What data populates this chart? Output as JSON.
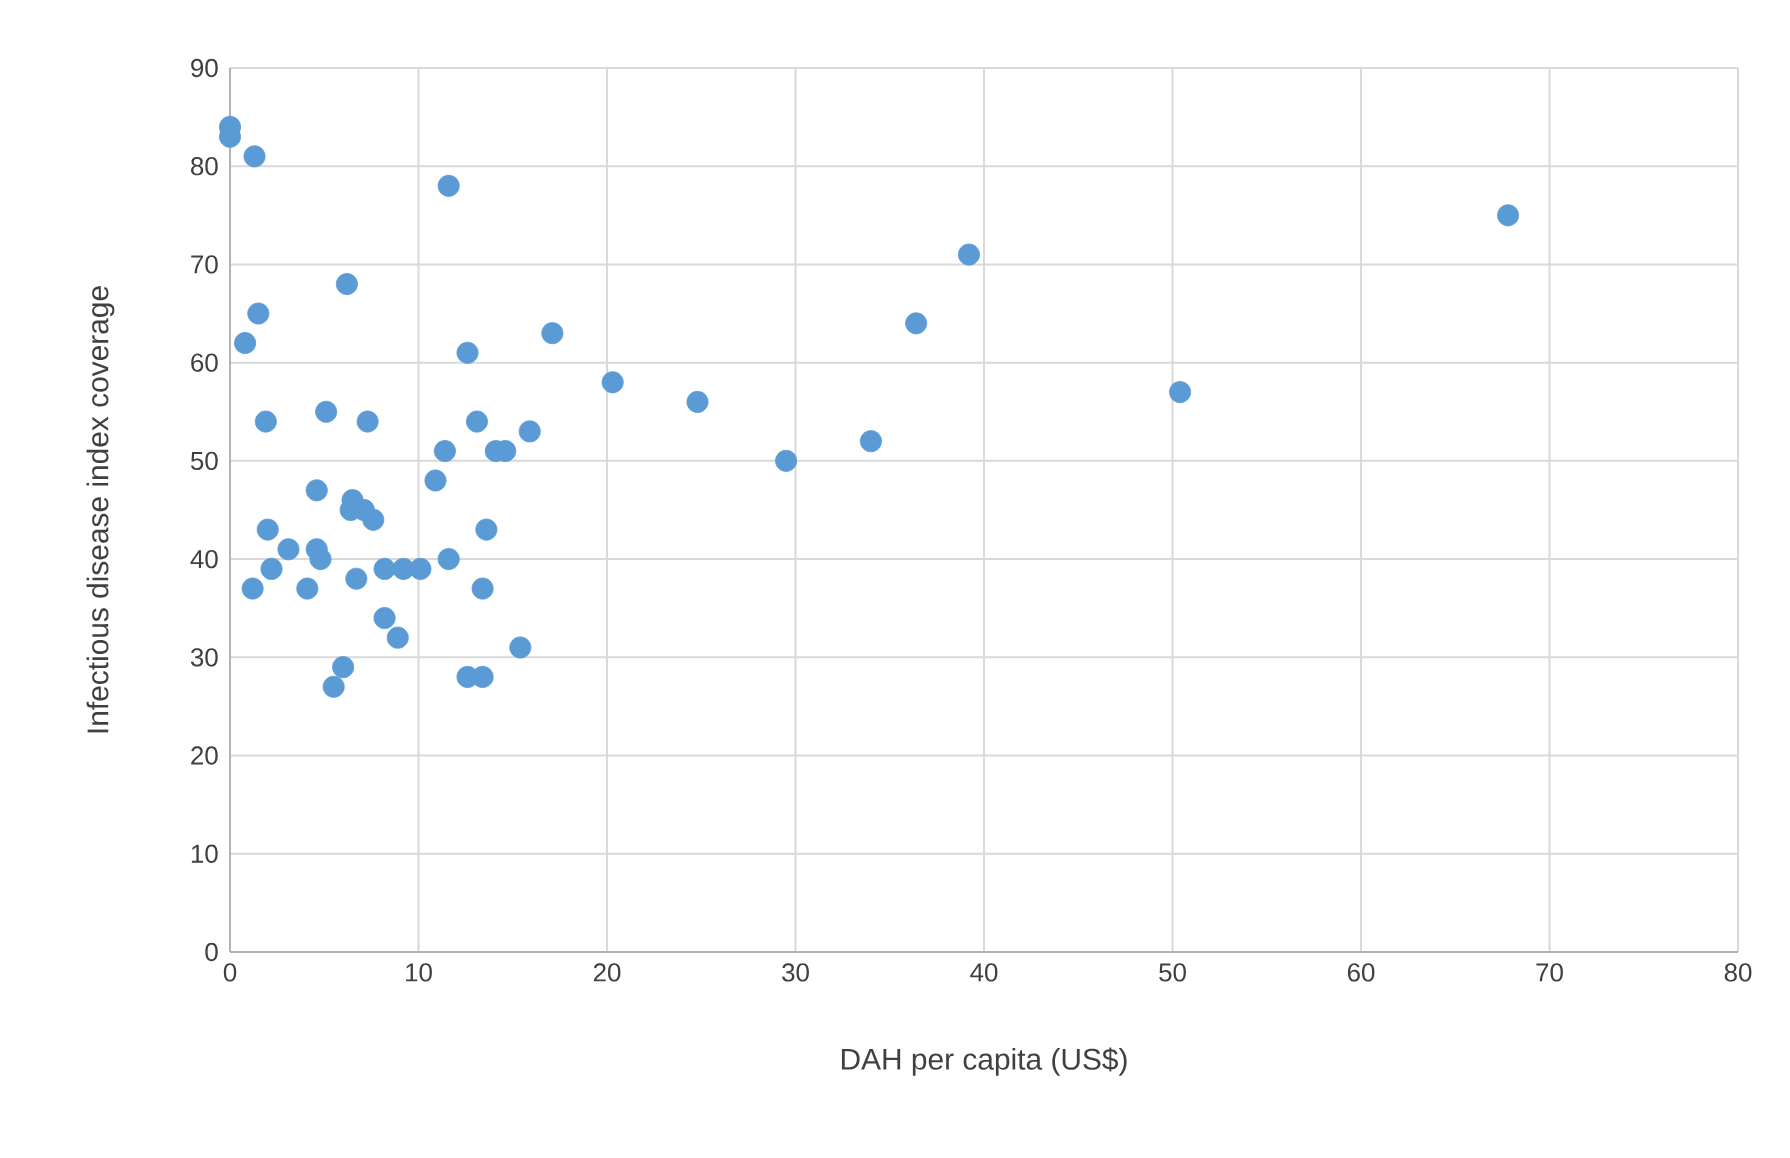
{
  "chart_data": {
    "type": "scatter",
    "xlabel": "DAH per capita (US$)",
    "ylabel": "Infectious disease index coverage",
    "xlim": [
      0,
      80
    ],
    "ylim": [
      0,
      90
    ],
    "xticks": [
      0,
      10,
      20,
      30,
      40,
      50,
      60,
      70,
      80
    ],
    "yticks": [
      0,
      10,
      20,
      30,
      40,
      50,
      60,
      70,
      80,
      90
    ],
    "grid": true,
    "marker": "circle",
    "series": [
      {
        "color": "#5b9bd5",
        "x": [
          0,
          0,
          1.3,
          11.6,
          67.8,
          39.2,
          6.2,
          1.5,
          36.4,
          17.1,
          0.8,
          12.6,
          20.3,
          50.4,
          24.8,
          5.1,
          1.9,
          7.3,
          13.1,
          15.9,
          34,
          11.4,
          14.1,
          14.6,
          29.5,
          10.9,
          4.6,
          6.5,
          6.4,
          7.1,
          7.6,
          2.0,
          13.6,
          3.1,
          4.6,
          4.8,
          11.6,
          2.2,
          8.2,
          9.2,
          10.1,
          6.7,
          1.2,
          4.1,
          13.4,
          8.2,
          8.9,
          15.4,
          6.0,
          12.6,
          13.4,
          5.5
        ],
        "values": [
          84,
          83,
          81,
          78,
          75,
          71,
          68,
          65,
          64,
          63,
          62,
          61,
          58,
          57,
          56,
          55,
          54,
          54,
          54,
          53,
          52,
          51,
          51,
          51,
          50,
          48,
          47,
          46,
          45,
          45,
          44,
          43,
          43,
          41,
          41,
          40,
          40,
          39,
          39,
          39,
          39,
          38,
          37,
          37,
          37,
          34,
          32,
          31,
          29,
          28,
          28,
          27
        ]
      }
    ]
  }
}
